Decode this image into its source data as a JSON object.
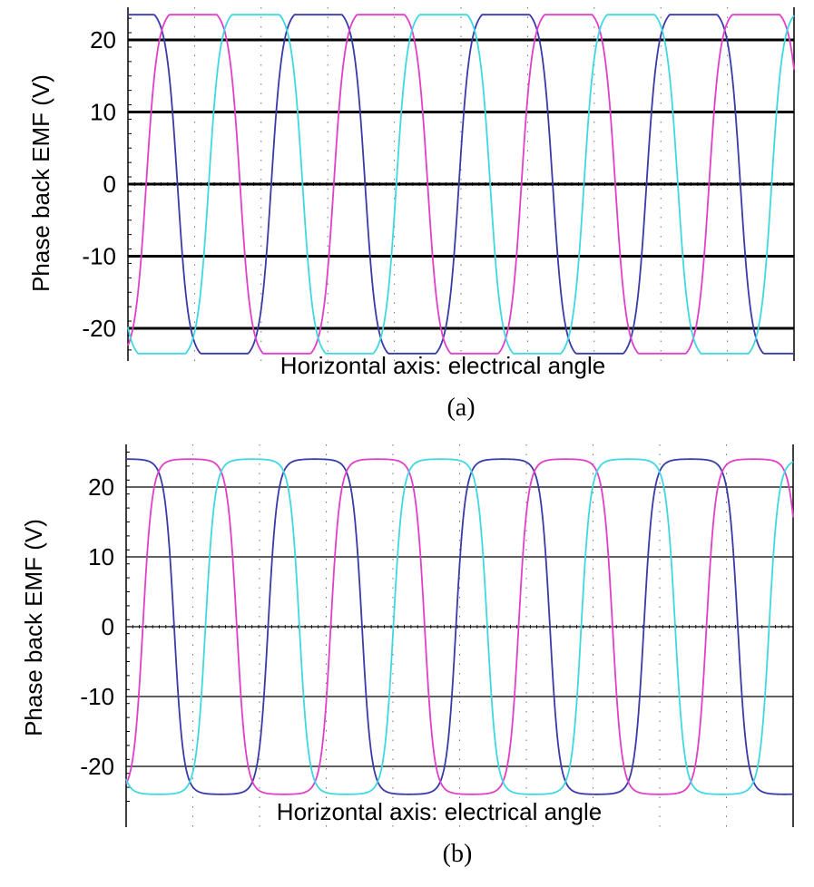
{
  "colors": {
    "phase_a": "#3a3aa8",
    "phase_b": "#e040c8",
    "phase_c": "#40d8e0",
    "axis": "#000000",
    "dotted_grid": "#707070"
  },
  "chart_data": [
    {
      "type": "line",
      "caption": "(a)",
      "ylabel": "Phase back EMF (V)",
      "xlabel": "Horizontal axis: electrical angle",
      "ylim": [
        -26,
        26
      ],
      "yticks": [
        {
          "value": 20,
          "label": "20"
        },
        {
          "value": 10,
          "label": "10"
        },
        {
          "value": 0,
          "label": "0"
        },
        {
          "value": -10,
          "label": "-10"
        },
        {
          "value": -20,
          "label": "-20"
        }
      ],
      "gridlines": {
        "style": "thick-solid",
        "values": [
          20,
          10,
          0,
          -10,
          -20
        ]
      },
      "x_divisions": 10,
      "waveform": {
        "amplitude": 24.5,
        "clip": 22.5,
        "cycles": 3.55,
        "start_phase_deg": 85,
        "flatness": 2.6
      },
      "series": [
        {
          "color_key": "phase_a",
          "phase_offset_deg": 0
        },
        {
          "color_key": "phase_b",
          "phase_offset_deg": -120
        },
        {
          "color_key": "phase_c",
          "phase_offset_deg": 120
        }
      ]
    },
    {
      "type": "line",
      "caption": "(b)",
      "ylabel": "Phase back EMF (V)",
      "xlabel": "Horizontal axis: electrical angle",
      "ylim": [
        -26,
        26
      ],
      "yticks": [
        {
          "value": 20,
          "label": "20"
        },
        {
          "value": 10,
          "label": "10"
        },
        {
          "value": 0,
          "label": "0"
        },
        {
          "value": -10,
          "label": "-10"
        },
        {
          "value": -20,
          "label": "-20"
        }
      ],
      "gridlines": {
        "style": "thin-solid",
        "values": [
          20,
          10,
          0,
          -10,
          -20
        ]
      },
      "x_divisions": 10,
      "waveform": {
        "amplitude": 24,
        "clip": 23.5,
        "cycles": 3.55,
        "start_phase_deg": 88,
        "flatness": 3.2
      },
      "series": [
        {
          "color_key": "phase_a",
          "phase_offset_deg": 0
        },
        {
          "color_key": "phase_b",
          "phase_offset_deg": -120
        },
        {
          "color_key": "phase_c",
          "phase_offset_deg": 120
        }
      ]
    }
  ]
}
